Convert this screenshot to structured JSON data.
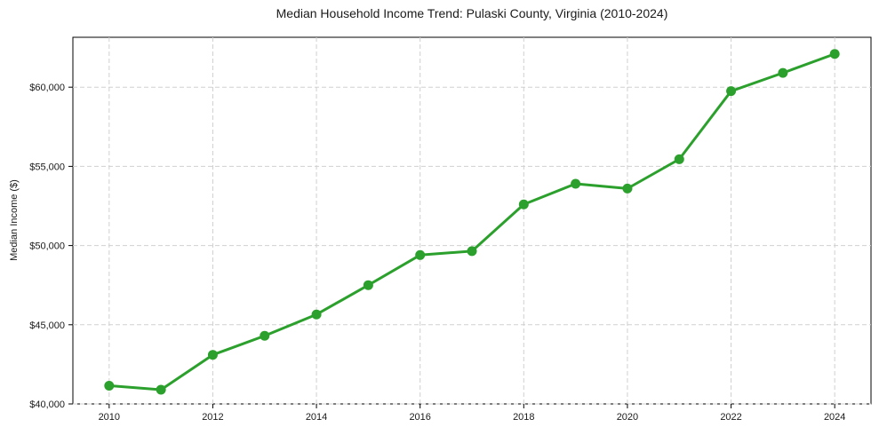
{
  "chart_data": {
    "type": "line",
    "title": "Median Household Income Trend: Pulaski County, Virginia (2010-2024)",
    "xlabel": "",
    "ylabel": "Median Income ($)",
    "x": [
      2010,
      2011,
      2012,
      2013,
      2014,
      2015,
      2016,
      2017,
      2018,
      2019,
      2020,
      2021,
      2022,
      2023,
      2024
    ],
    "values": [
      41150,
      40900,
      43100,
      44300,
      45650,
      47500,
      49400,
      49650,
      52600,
      53900,
      53600,
      55450,
      59750,
      60900,
      62100
    ],
    "xlim": [
      2009.3,
      2024.7
    ],
    "ylim": [
      40000,
      63150
    ],
    "xticks": {
      "values": [
        2010,
        2012,
        2014,
        2016,
        2018,
        2020,
        2022,
        2024
      ],
      "labels": [
        "2010",
        "2012",
        "2014",
        "2016",
        "2018",
        "2020",
        "2022",
        "2024"
      ]
    },
    "yticks": {
      "values": [
        40000,
        45000,
        50000,
        55000,
        60000
      ],
      "labels": [
        "$40,000",
        "$45,000",
        "$50,000",
        "$55,000",
        "$60,000"
      ]
    },
    "grid": true,
    "grid_line_style": "dashed",
    "legend_position": "none",
    "colors": {
      "line": "#2ca02c",
      "marker": "#2ca02c",
      "grid": "#d0d0d0",
      "spine": "#000000",
      "background": "#ffffff",
      "text": "#1a1a1a"
    }
  }
}
